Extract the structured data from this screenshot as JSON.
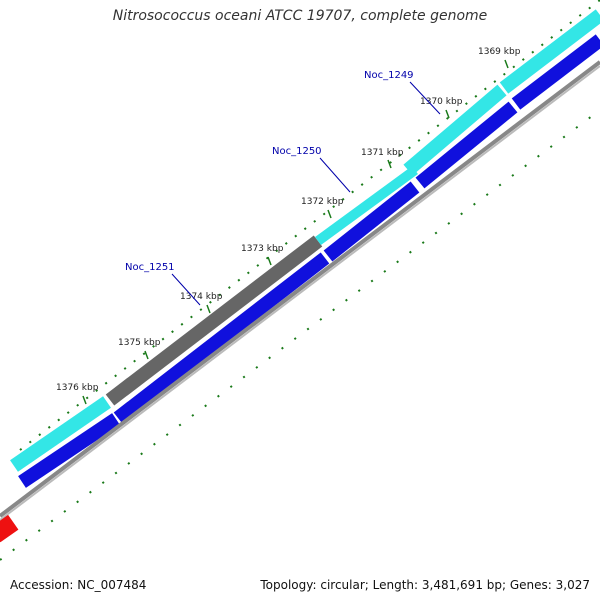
{
  "title": "Nitrosococcus oceani ATCC 19707, complete genome",
  "footer": {
    "accession": "Accession: NC_007484",
    "topology": "Topology: circular; Length: 3,481,691 bp; Genes: 3,027"
  },
  "ticks": [
    {
      "label": "1369 kbp"
    },
    {
      "label": "1370 kbp"
    },
    {
      "label": "1371 kbp"
    },
    {
      "label": "1372 kbp"
    },
    {
      "label": "1373 kbp"
    },
    {
      "label": "1374 kbp"
    },
    {
      "label": "1375 kbp"
    },
    {
      "label": "1376 kbp"
    }
  ],
  "genes": [
    {
      "name": "Noc_1249"
    },
    {
      "name": "Noc_1250"
    },
    {
      "name": "Noc_1251"
    }
  ],
  "colors": {
    "cyan": "#33e6e6",
    "gray": "#666666",
    "blue": "#1010dd",
    "green": "#1a7a1a",
    "red": "#ee1111",
    "label": "#0000aa"
  }
}
